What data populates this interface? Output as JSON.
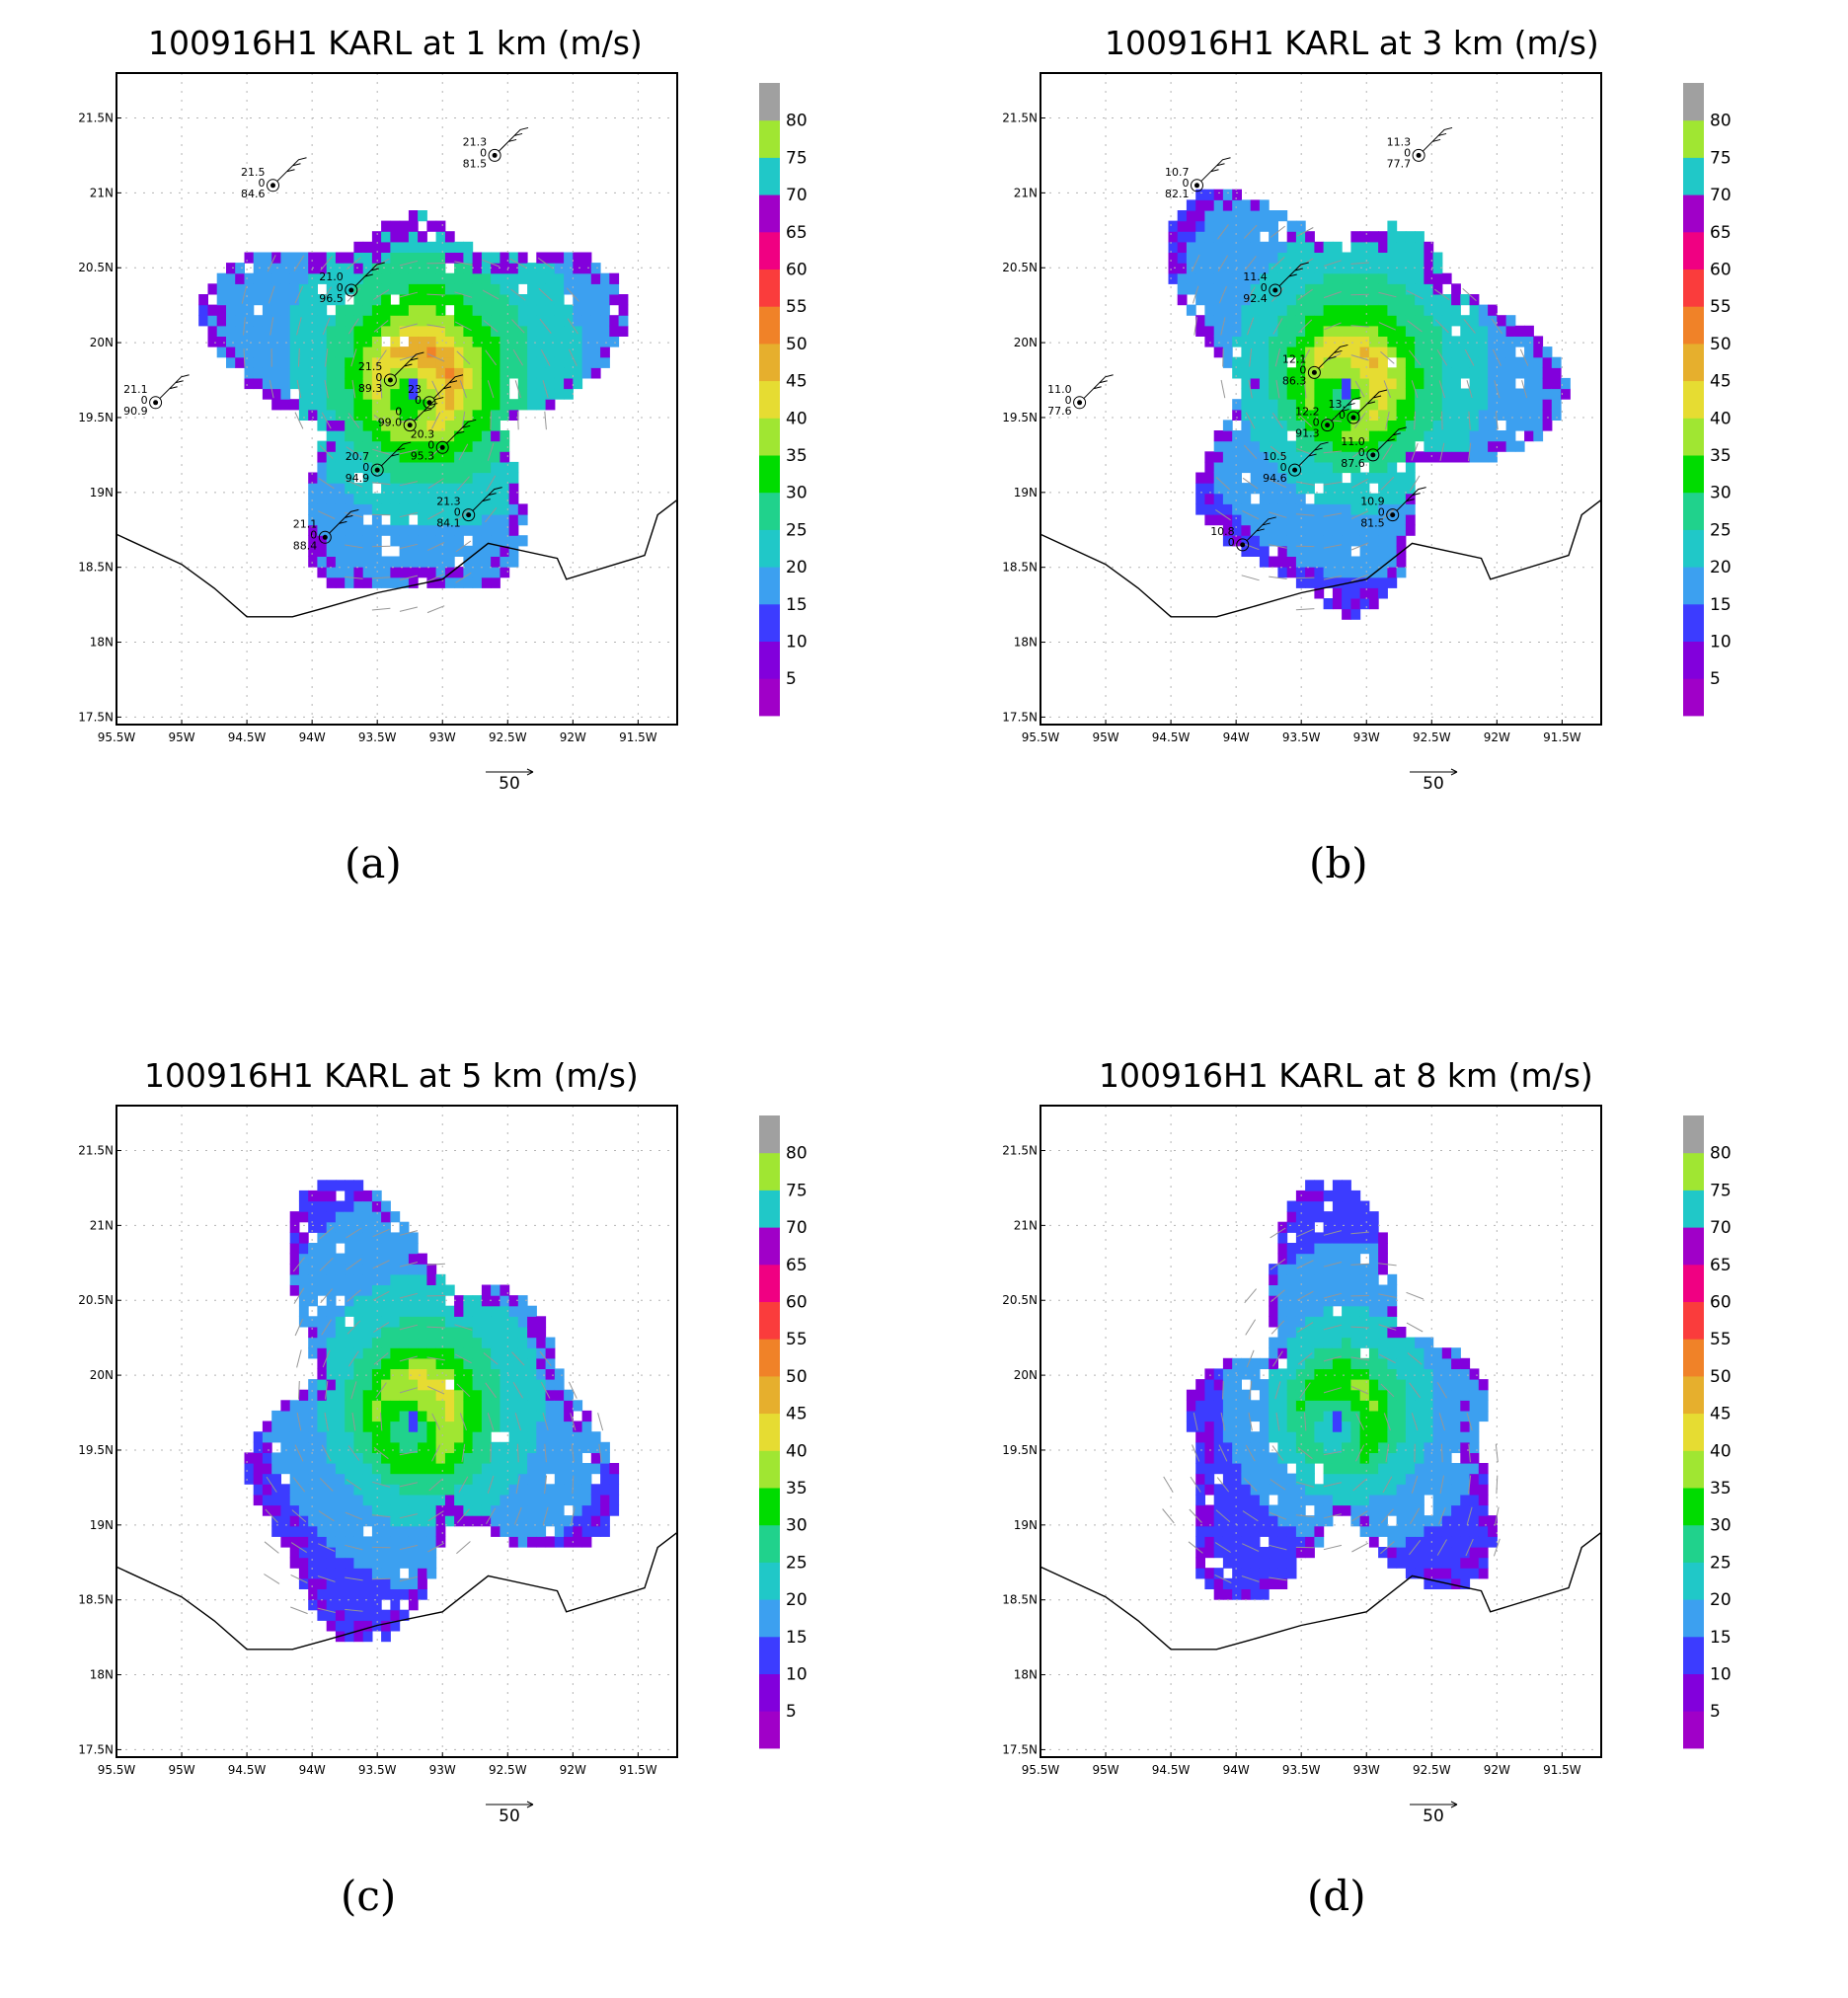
{
  "chart_data": [
    {
      "type": "heatmap",
      "panel_label": "(a)",
      "title": "100916H1 KARL at 1 km (m/s)",
      "x_ticks": [
        "95.5W",
        "95W",
        "94.5W",
        "94W",
        "93.5W",
        "93W",
        "92.5W",
        "92W",
        "91.5W"
      ],
      "y_ticks": [
        "17.5N",
        "18N",
        "18.5N",
        "19N",
        "19.5N",
        "20N",
        "20.5N",
        "21N",
        "21.5N"
      ],
      "xlim": [
        -95.5,
        -91.2
      ],
      "ylim": [
        17.45,
        21.8
      ],
      "grid": true,
      "colorbar_levels": [
        "5",
        "10",
        "15",
        "20",
        "25",
        "30",
        "35",
        "40",
        "45",
        "50",
        "55",
        "60",
        "65",
        "70",
        "75",
        "80"
      ],
      "reference_vector": "50",
      "center": [
        -93.25,
        19.65
      ],
      "vmax": 45,
      "stations": [
        {
          "lon": -95.2,
          "lat": 19.6,
          "labels": [
            "21.1",
            "0",
            "90.9"
          ]
        },
        {
          "lon": -94.3,
          "lat": 21.05,
          "labels": [
            "21.5",
            "0",
            "84.6"
          ]
        },
        {
          "lon": -92.6,
          "lat": 21.25,
          "labels": [
            "21.3",
            "0",
            "81.5"
          ]
        },
        {
          "lon": -93.7,
          "lat": 20.35,
          "labels": [
            "21.0",
            "0",
            "96.5"
          ]
        },
        {
          "lon": -93.4,
          "lat": 19.75,
          "labels": [
            "21.5",
            "0",
            "89.3"
          ]
        },
        {
          "lon": -93.1,
          "lat": 19.6,
          "labels": [
            "23",
            "0"
          ]
        },
        {
          "lon": -93.25,
          "lat": 19.45,
          "labels": [
            "0",
            "99.0"
          ]
        },
        {
          "lon": -93.0,
          "lat": 19.3,
          "labels": [
            "20.3",
            "0",
            "95.3"
          ]
        },
        {
          "lon": -93.5,
          "lat": 19.15,
          "labels": [
            "20.7",
            "0",
            "94.9"
          ]
        },
        {
          "lon": -92.8,
          "lat": 18.85,
          "labels": [
            "21.3",
            "0",
            "84.1"
          ]
        },
        {
          "lon": -93.9,
          "lat": 18.7,
          "labels": [
            "21.1",
            "0",
            "88.4"
          ]
        }
      ]
    },
    {
      "type": "heatmap",
      "panel_label": "(b)",
      "title": "100916H1 KARL at 3 km (m/s)",
      "x_ticks": [
        "95.5W",
        "95W",
        "94.5W",
        "94W",
        "93.5W",
        "93W",
        "92.5W",
        "92W",
        "91.5W"
      ],
      "y_ticks": [
        "17.5N",
        "18N",
        "18.5N",
        "19N",
        "19.5N",
        "20N",
        "20.5N",
        "21N",
        "21.5N"
      ],
      "xlim": [
        -95.5,
        -91.2
      ],
      "ylim": [
        17.45,
        21.8
      ],
      "grid": true,
      "colorbar_levels": [
        "5",
        "10",
        "15",
        "20",
        "25",
        "30",
        "35",
        "40",
        "45",
        "50",
        "55",
        "60",
        "65",
        "70",
        "75",
        "80"
      ],
      "reference_vector": "50",
      "center": [
        -93.2,
        19.65
      ],
      "vmax": 41,
      "stations": [
        {
          "lon": -95.2,
          "lat": 19.6,
          "labels": [
            "11.0",
            "0",
            "77.6"
          ]
        },
        {
          "lon": -94.3,
          "lat": 21.05,
          "labels": [
            "10.7",
            "0",
            "82.1"
          ]
        },
        {
          "lon": -92.6,
          "lat": 21.25,
          "labels": [
            "11.3",
            "0",
            "77.7"
          ]
        },
        {
          "lon": -93.7,
          "lat": 20.35,
          "labels": [
            "11.4",
            "0",
            "92.4"
          ]
        },
        {
          "lon": -93.4,
          "lat": 19.8,
          "labels": [
            "12.1",
            "0",
            "86.3"
          ]
        },
        {
          "lon": -93.1,
          "lat": 19.5,
          "labels": [
            "13.",
            "0"
          ]
        },
        {
          "lon": -93.3,
          "lat": 19.45,
          "labels": [
            "12.2",
            "0",
            "91.3"
          ]
        },
        {
          "lon": -92.95,
          "lat": 19.25,
          "labels": [
            "11.0",
            "0",
            "87.6"
          ]
        },
        {
          "lon": -93.55,
          "lat": 19.15,
          "labels": [
            "10.5",
            "0",
            "94.6"
          ]
        },
        {
          "lon": -92.8,
          "lat": 18.85,
          "labels": [
            "10.9",
            "0",
            "81.5"
          ]
        },
        {
          "lon": -93.95,
          "lat": 18.65,
          "labels": [
            "10.8",
            "0"
          ]
        }
      ]
    },
    {
      "type": "heatmap",
      "panel_label": "(c)",
      "title": "100916H1 KARL at 5 km (m/s)",
      "x_ticks": [
        "95.5W",
        "95W",
        "94.5W",
        "94W",
        "93.5W",
        "93W",
        "92.5W",
        "92W",
        "91.5W"
      ],
      "y_ticks": [
        "17.5N",
        "18N",
        "18.5N",
        "19N",
        "19.5N",
        "20N",
        "20.5N",
        "21N",
        "21.5N"
      ],
      "xlim": [
        -95.5,
        -91.2
      ],
      "ylim": [
        17.45,
        21.8
      ],
      "grid": true,
      "colorbar_levels": [
        "5",
        "10",
        "15",
        "20",
        "25",
        "30",
        "35",
        "40",
        "45",
        "50",
        "55",
        "60",
        "65",
        "70",
        "75",
        "80"
      ],
      "reference_vector": "50",
      "center": [
        -93.25,
        19.65
      ],
      "vmax": 38,
      "stations": []
    },
    {
      "type": "heatmap",
      "panel_label": "(d)",
      "title": "100916H1 KARL at 8 km (m/s)",
      "x_ticks": [
        "95.5W",
        "95W",
        "94.5W",
        "94W",
        "93.5W",
        "93W",
        "92.5W",
        "92W",
        "91.5W"
      ],
      "y_ticks": [
        "17.5N",
        "18N",
        "18.5N",
        "19N",
        "19.5N",
        "20N",
        "20.5N",
        "21N",
        "21.5N"
      ],
      "xlim": [
        -95.5,
        -91.2
      ],
      "ylim": [
        17.45,
        21.8
      ],
      "grid": true,
      "colorbar_levels": [
        "5",
        "10",
        "15",
        "20",
        "25",
        "30",
        "35",
        "40",
        "45",
        "50",
        "55",
        "60",
        "65",
        "70",
        "75",
        "80"
      ],
      "reference_vector": "50",
      "center": [
        -93.25,
        19.65
      ],
      "vmax": 32,
      "stations": []
    }
  ],
  "colors": {
    "palette": [
      "#a000c8",
      "#8200dc",
      "#3c3cff",
      "#3ca0f0",
      "#20c8c8",
      "#20d28c",
      "#00dc00",
      "#a0e632",
      "#e6dc32",
      "#e6af2d",
      "#f08228",
      "#fa3c3c",
      "#f00082",
      "#a000c8",
      "#20c8c8",
      "#a0e632",
      "#a0a0a0"
    ],
    "coastline": "#000000",
    "grid": "#b4b4b4",
    "vector": "#969696"
  }
}
